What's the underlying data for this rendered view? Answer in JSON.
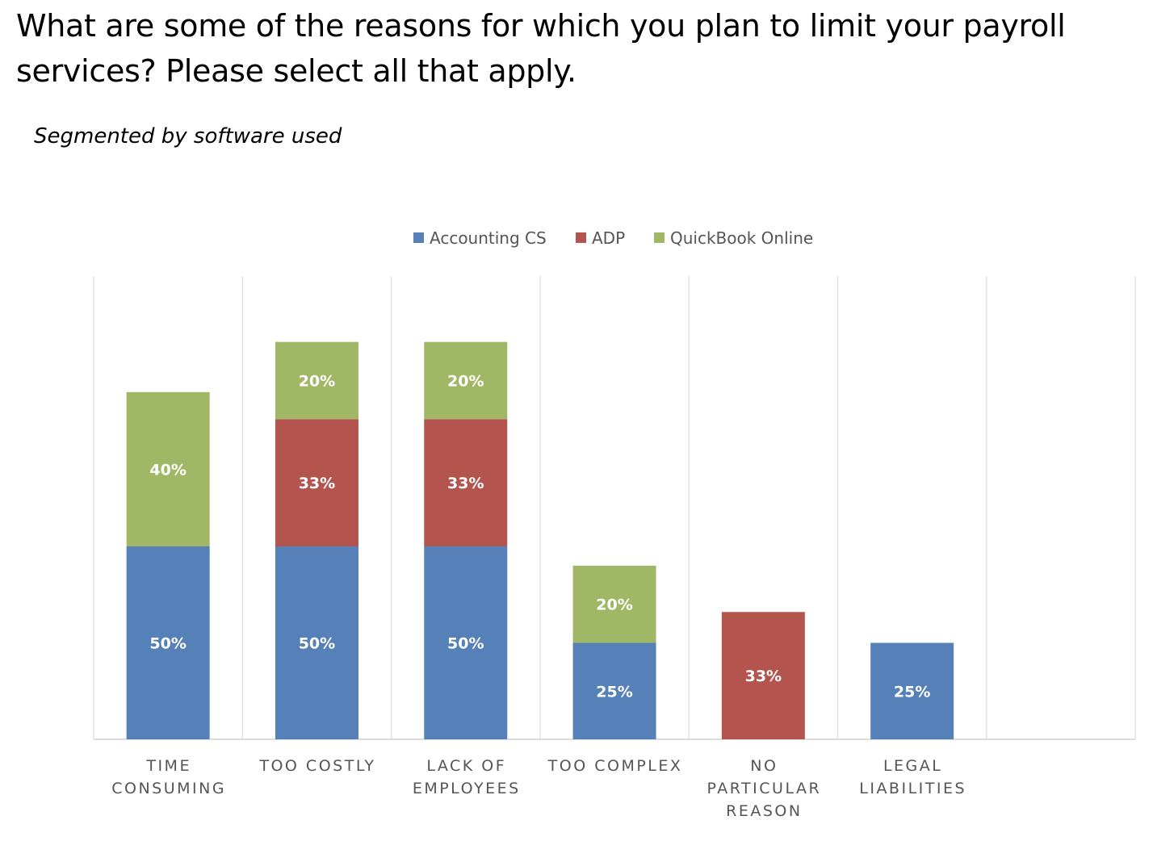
{
  "chart_data": {
    "type": "bar",
    "stacked": true,
    "title": "What are some of the reasons for which you plan to limit your payroll services? Please select all that apply.",
    "subtitle": "Segmented by software used",
    "categories": [
      "TIME CONSUMING",
      "TOO COSTLY",
      "LACK OF EMPLOYEES",
      "TOO COMPLEX",
      "NO PARTICULAR REASON",
      "LEGAL LIABILITIES"
    ],
    "series": [
      {
        "name": "Accounting CS",
        "color": "#5680b8",
        "values": [
          50,
          50,
          50,
          25,
          null,
          25
        ]
      },
      {
        "name": "ADP",
        "color": "#b3554e",
        "values": [
          null,
          33,
          33,
          null,
          33,
          null
        ]
      },
      {
        "name": "QuickBook Online",
        "color": "#a0b865",
        "values": [
          40,
          20,
          20,
          20,
          null,
          null
        ]
      }
    ],
    "value_suffix": "%",
    "legend": "top-center",
    "grid": "vertical",
    "xlabel": "",
    "ylabel": "",
    "ylim": [
      0,
      120
    ]
  }
}
